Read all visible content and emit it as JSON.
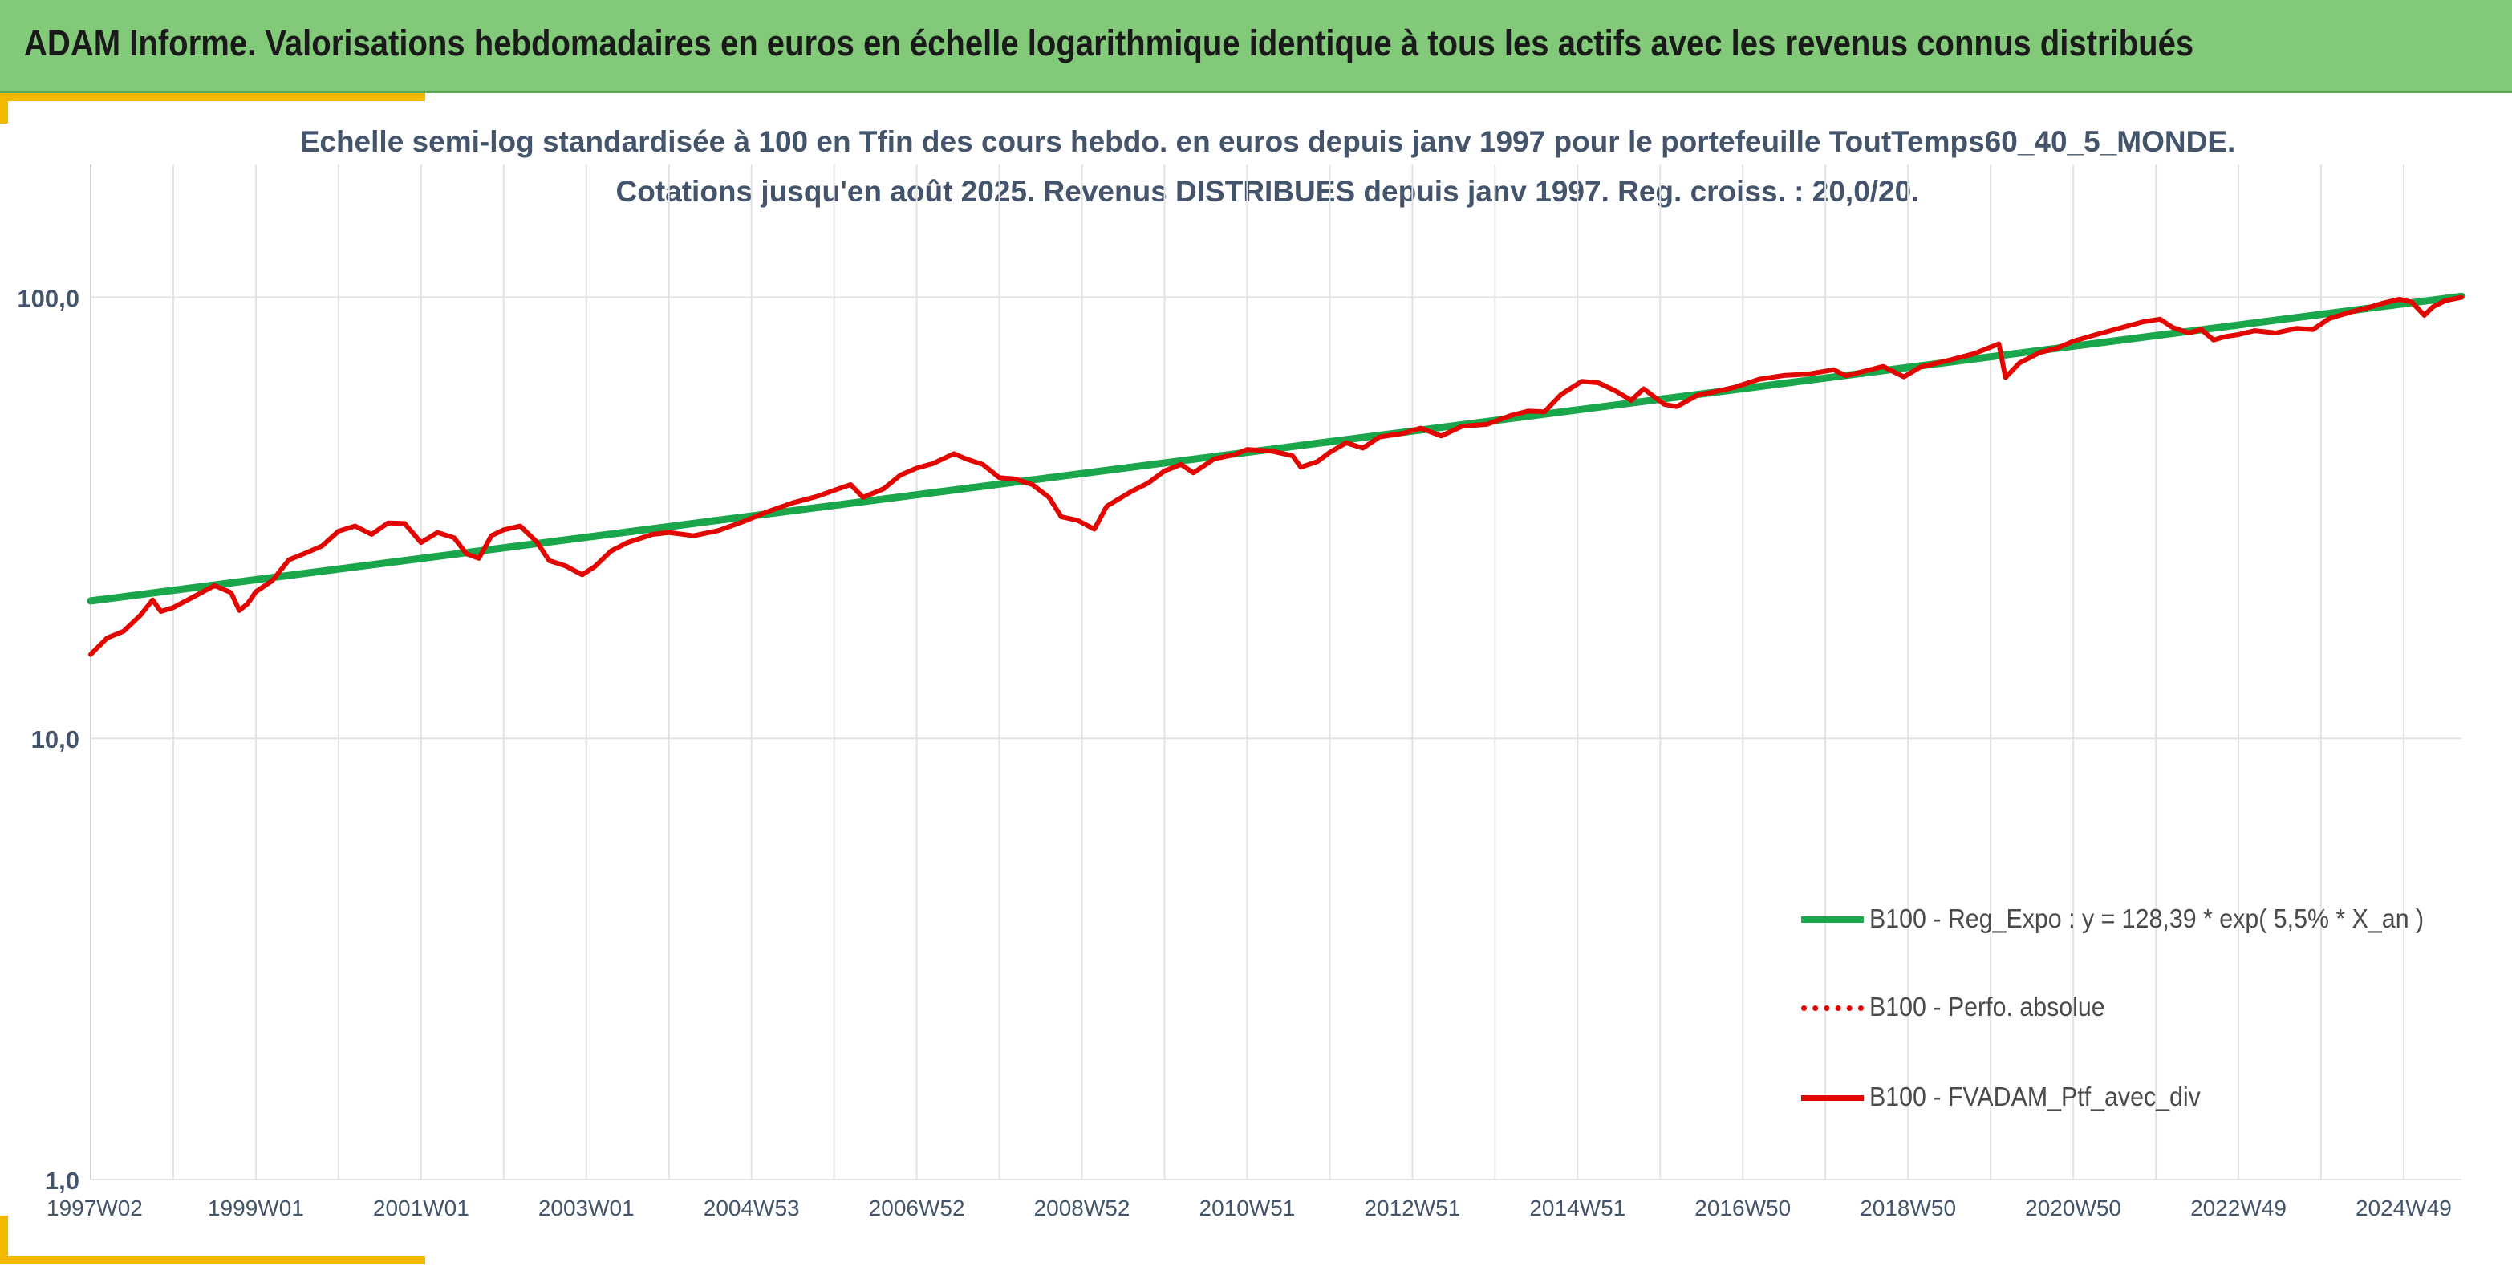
{
  "header": {
    "title": "ADAM Informe. Valorisations hebdomadaires en euros en échelle logarithmique identique à tous les actifs avec les revenus connus distribués"
  },
  "colors": {
    "header_bg": "#82c97a",
    "corner_accent": "#f5b800",
    "regression": "#1aa64a",
    "portfolio": "#e10600",
    "grid": "#e3e3e3",
    "title_text": "#44546a"
  },
  "chart_data": {
    "type": "line",
    "scale": "log",
    "title_lines": [
      "Echelle semi-log standardisée à 100 en Tfin des cours hebdo. en euros depuis janv 1997 pour le portefeuille ToutTemps60_40_5_MONDE.",
      "Cotations jusqu'en août 2025. Revenus DISTRIBUES depuis janv 1997. Reg. croiss. : 20,0/20."
    ],
    "ylim": [
      1,
      200
    ],
    "xlim": [
      1997.0,
      2025.7
    ],
    "grid": "vertical and horizontal",
    "legend_position": "bottom-right",
    "y_ticks": [
      {
        "value": 100,
        "label": "100,0"
      },
      {
        "value": 10,
        "label": "10,0"
      },
      {
        "value": 1,
        "label": "1,0"
      }
    ],
    "x_ticks": [
      {
        "x": 1997.0,
        "label": "1997W02"
      },
      {
        "x": 1999.0,
        "label": "1999W01"
      },
      {
        "x": 2001.0,
        "label": "2001W01"
      },
      {
        "x": 2003.0,
        "label": "2003W01"
      },
      {
        "x": 2005.0,
        "label": "2004W53"
      },
      {
        "x": 2007.0,
        "label": "2006W52"
      },
      {
        "x": 2009.0,
        "label": "2008W52"
      },
      {
        "x": 2011.0,
        "label": "2010W51"
      },
      {
        "x": 2013.0,
        "label": "2012W51"
      },
      {
        "x": 2015.0,
        "label": "2014W51"
      },
      {
        "x": 2017.0,
        "label": "2016W50"
      },
      {
        "x": 2019.0,
        "label": "2018W50"
      },
      {
        "x": 2021.0,
        "label": "2020W50"
      },
      {
        "x": 2023.0,
        "label": "2022W49"
      },
      {
        "x": 2025.0,
        "label": "2024W49"
      }
    ],
    "series": [
      {
        "name": "B100 - Reg_Expo : y = 128,39 * exp( 5,5% *  X_an )",
        "style": "solid-thick",
        "color": "#1aa64a",
        "points": [
          [
            1997.0,
            20.5
          ],
          [
            2025.7,
            100.5
          ]
        ]
      },
      {
        "name": "B100 - Perfo. absolue",
        "style": "dotted",
        "color": "#e10600",
        "points": []
      },
      {
        "name": "B100 - FVADAM_Ptf_avec_div",
        "style": "solid",
        "color": "#e10600",
        "points": [
          [
            1997.0,
            15.5
          ],
          [
            1997.2,
            16.9
          ],
          [
            1997.4,
            17.5
          ],
          [
            1997.6,
            19.0
          ],
          [
            1997.75,
            20.6
          ],
          [
            1997.85,
            19.4
          ],
          [
            1998.0,
            19.8
          ],
          [
            1998.3,
            21.2
          ],
          [
            1998.5,
            22.2
          ],
          [
            1998.7,
            21.4
          ],
          [
            1998.8,
            19.5
          ],
          [
            1998.9,
            20.2
          ],
          [
            1999.0,
            21.5
          ],
          [
            1999.2,
            22.8
          ],
          [
            1999.4,
            25.4
          ],
          [
            1999.6,
            26.3
          ],
          [
            1999.8,
            27.3
          ],
          [
            2000.0,
            29.5
          ],
          [
            2000.2,
            30.3
          ],
          [
            2000.4,
            29.0
          ],
          [
            2000.6,
            30.8
          ],
          [
            2000.8,
            30.7
          ],
          [
            2001.0,
            27.8
          ],
          [
            2001.2,
            29.3
          ],
          [
            2001.4,
            28.5
          ],
          [
            2001.55,
            26.2
          ],
          [
            2001.7,
            25.6
          ],
          [
            2001.85,
            28.8
          ],
          [
            2002.0,
            29.7
          ],
          [
            2002.2,
            30.3
          ],
          [
            2002.4,
            27.9
          ],
          [
            2002.55,
            25.3
          ],
          [
            2002.75,
            24.6
          ],
          [
            2002.95,
            23.5
          ],
          [
            2003.1,
            24.5
          ],
          [
            2003.3,
            26.6
          ],
          [
            2003.5,
            27.8
          ],
          [
            2003.8,
            29.0
          ],
          [
            2004.0,
            29.3
          ],
          [
            2004.3,
            28.8
          ],
          [
            2004.6,
            29.6
          ],
          [
            2004.9,
            31.0
          ],
          [
            2005.2,
            32.7
          ],
          [
            2005.5,
            34.2
          ],
          [
            2005.8,
            35.4
          ],
          [
            2006.0,
            36.5
          ],
          [
            2006.2,
            37.6
          ],
          [
            2006.35,
            35.2
          ],
          [
            2006.6,
            36.8
          ],
          [
            2006.8,
            39.5
          ],
          [
            2007.0,
            41.0
          ],
          [
            2007.2,
            42.0
          ],
          [
            2007.45,
            44.2
          ],
          [
            2007.6,
            43.0
          ],
          [
            2007.8,
            41.8
          ],
          [
            2008.0,
            39.0
          ],
          [
            2008.2,
            38.7
          ],
          [
            2008.4,
            37.6
          ],
          [
            2008.6,
            35.2
          ],
          [
            2008.75,
            31.8
          ],
          [
            2008.95,
            31.2
          ],
          [
            2009.15,
            29.8
          ],
          [
            2009.3,
            33.6
          ],
          [
            2009.6,
            36.3
          ],
          [
            2009.8,
            37.9
          ],
          [
            2010.0,
            40.4
          ],
          [
            2010.2,
            41.8
          ],
          [
            2010.35,
            40.0
          ],
          [
            2010.6,
            43.0
          ],
          [
            2010.85,
            44.0
          ],
          [
            2011.0,
            45.2
          ],
          [
            2011.3,
            44.8
          ],
          [
            2011.55,
            43.7
          ],
          [
            2011.65,
            41.2
          ],
          [
            2011.85,
            42.4
          ],
          [
            2012.0,
            44.5
          ],
          [
            2012.2,
            46.8
          ],
          [
            2012.4,
            45.5
          ],
          [
            2012.6,
            48.2
          ],
          [
            2012.9,
            49.2
          ],
          [
            2013.1,
            50.5
          ],
          [
            2013.35,
            48.5
          ],
          [
            2013.6,
            51.0
          ],
          [
            2013.9,
            51.5
          ],
          [
            2014.2,
            54.0
          ],
          [
            2014.4,
            55.2
          ],
          [
            2014.6,
            55.0
          ],
          [
            2014.8,
            60.2
          ],
          [
            2015.05,
            64.5
          ],
          [
            2015.25,
            64.0
          ],
          [
            2015.45,
            61.5
          ],
          [
            2015.65,
            58.4
          ],
          [
            2015.8,
            62.0
          ],
          [
            2016.05,
            57.2
          ],
          [
            2016.2,
            56.5
          ],
          [
            2016.45,
            60.0
          ],
          [
            2016.65,
            61.0
          ],
          [
            2016.9,
            62.5
          ],
          [
            2017.2,
            65.2
          ],
          [
            2017.5,
            66.5
          ],
          [
            2017.8,
            67.0
          ],
          [
            2018.1,
            68.5
          ],
          [
            2018.25,
            66.4
          ],
          [
            2018.5,
            68.2
          ],
          [
            2018.7,
            69.7
          ],
          [
            2018.95,
            66.0
          ],
          [
            2019.15,
            69.5
          ],
          [
            2019.5,
            72.0
          ],
          [
            2019.8,
            74.5
          ],
          [
            2020.1,
            78.4
          ],
          [
            2020.18,
            65.8
          ],
          [
            2020.35,
            71.0
          ],
          [
            2020.6,
            75.0
          ],
          [
            2020.8,
            76.6
          ],
          [
            2021.0,
            79.5
          ],
          [
            2021.3,
            82.5
          ],
          [
            2021.6,
            85.5
          ],
          [
            2021.85,
            88.0
          ],
          [
            2022.05,
            89.2
          ],
          [
            2022.2,
            85.5
          ],
          [
            2022.4,
            83.0
          ],
          [
            2022.55,
            84.5
          ],
          [
            2022.7,
            80.0
          ],
          [
            2022.85,
            81.5
          ],
          [
            2023.0,
            82.3
          ],
          [
            2023.2,
            84.0
          ],
          [
            2023.45,
            83.0
          ],
          [
            2023.7,
            85.0
          ],
          [
            2023.9,
            84.5
          ],
          [
            2024.1,
            89.5
          ],
          [
            2024.35,
            92.5
          ],
          [
            2024.55,
            94.5
          ],
          [
            2024.75,
            97.0
          ],
          [
            2024.95,
            99.0
          ],
          [
            2025.1,
            97.5
          ],
          [
            2025.25,
            91.0
          ],
          [
            2025.35,
            95.0
          ],
          [
            2025.5,
            98.2
          ],
          [
            2025.7,
            100.0
          ]
        ]
      }
    ]
  }
}
